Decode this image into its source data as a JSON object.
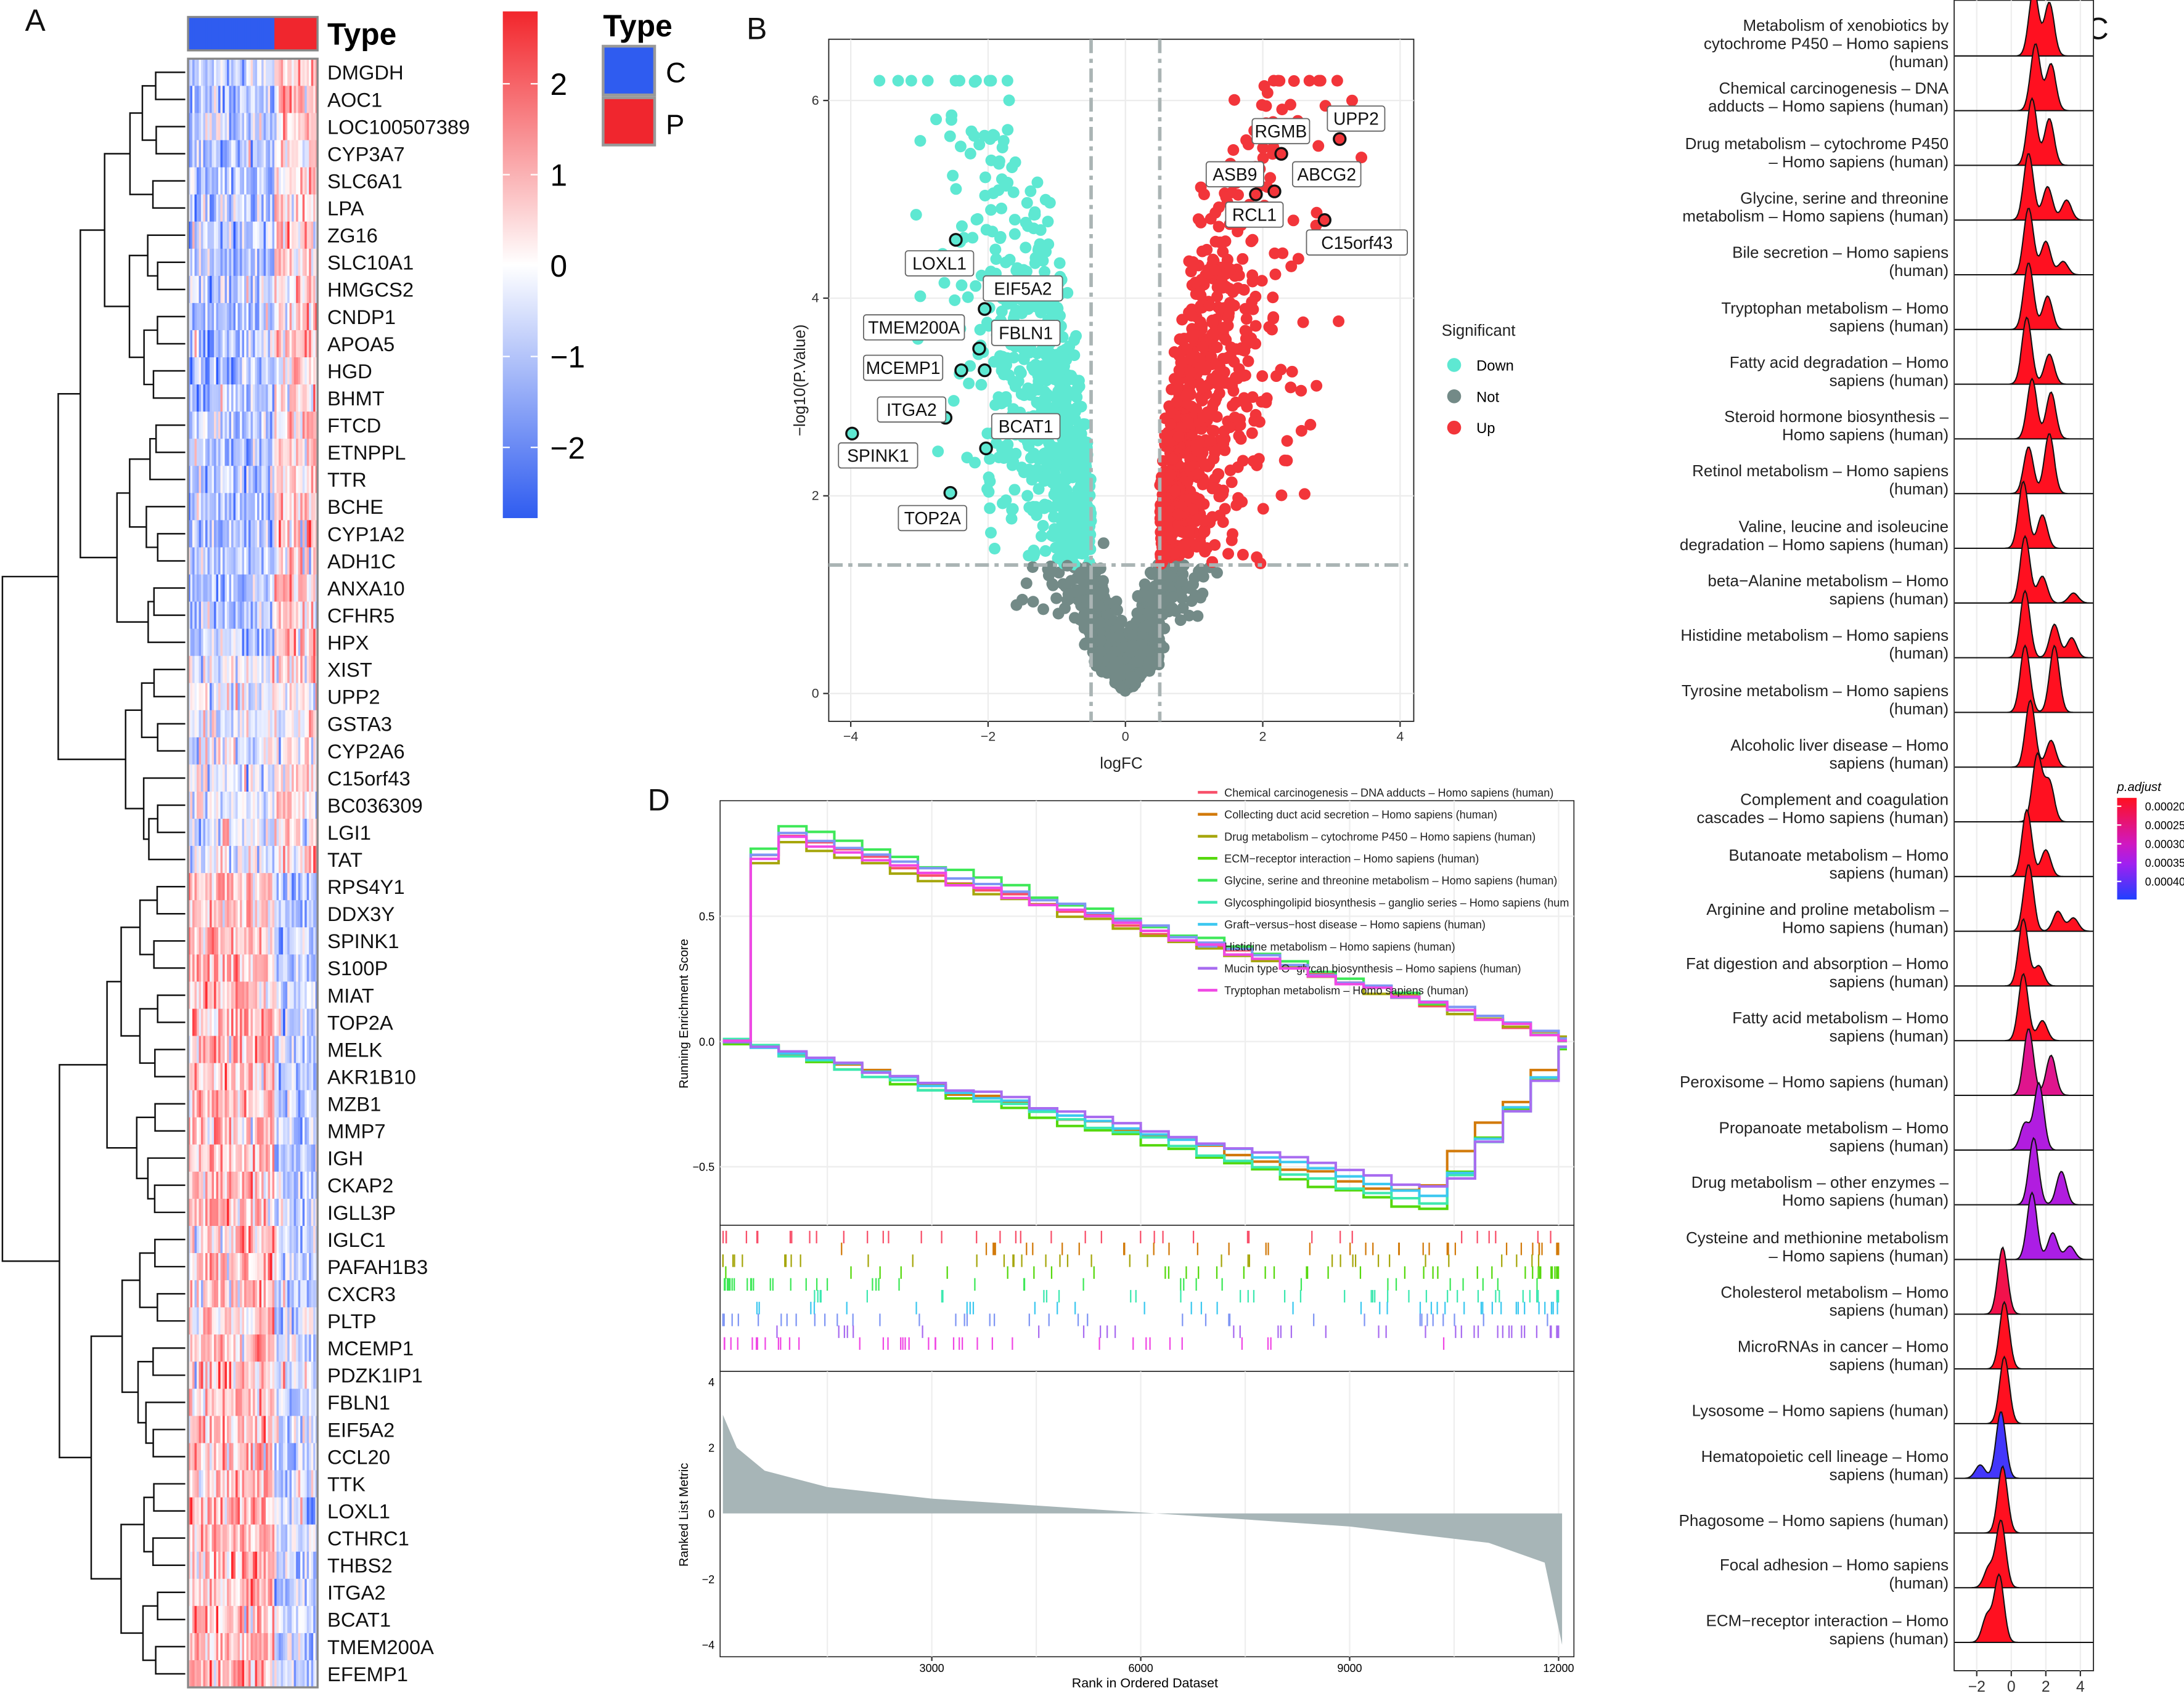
{
  "panels": {
    "a": "A",
    "b": "B",
    "c": "C",
    "d": "D"
  },
  "heatmap": {
    "type_title": "Type",
    "legend_title": "Type",
    "groups": [
      {
        "label": "C",
        "color": "#2f5cf0"
      },
      {
        "label": "P",
        "color": "#f0262e"
      }
    ],
    "scale_ticks": [
      "2",
      "1",
      "0",
      "−1",
      "−2"
    ],
    "n_control_cols": 40,
    "n_cols": 60,
    "genes": [
      "DMGDH",
      "AOC1",
      "LOC100507389",
      "CYP3A7",
      "SLC6A1",
      "LPA",
      "ZG16",
      "SLC10A1",
      "HMGCS2",
      "CNDP1",
      "APOA5",
      "HGD",
      "BHMT",
      "FTCD",
      "ETNPPL",
      "TTR",
      "BCHE",
      "CYP1A2",
      "ADH1C",
      "ANXA10",
      "CFHR5",
      "HPX",
      "XIST",
      "UPP2",
      "GSTA3",
      "CYP2A6",
      "C15orf43",
      "BC036309",
      "LGI1",
      "TAT",
      "RPS4Y1",
      "DDX3Y",
      "SPINK1",
      "S100P",
      "MIAT",
      "TOP2A",
      "MELK",
      "AKR1B10",
      "MZB1",
      "MMP7",
      "IGH",
      "CKAP2",
      "IGLL3P",
      "IGLC1",
      "PAFAH1B3",
      "CXCR3",
      "PLTP",
      "MCEMP1",
      "PDZK1IP1",
      "FBLN1",
      "EIF5A2",
      "CCL20",
      "TTK",
      "LOXL1",
      "CTHRC1",
      "THBS2",
      "ITGA2",
      "BCAT1",
      "TMEM200A",
      "EFEMP1"
    ],
    "row_trend_counts": [
      22,
      8,
      4,
      26
    ]
  },
  "chart_data": [
    {
      "type": "scatter",
      "name": "volcano",
      "xlabel": "logFC",
      "ylabel": "−log10(P.Value)",
      "xlim": [
        -4.2,
        4.2
      ],
      "ylim": [
        0,
        6.6
      ],
      "xticks": [
        "−4",
        "−2",
        "0",
        "2",
        "4"
      ],
      "yticks": [
        "0",
        "2",
        "4",
        "6"
      ],
      "thresholds": {
        "logFC": 0.5,
        "neglog10p": 1.3
      },
      "legend": {
        "title": "Significant",
        "position": "right",
        "items": [
          {
            "label": "Down",
            "color": "#5ee8d2"
          },
          {
            "label": "Not",
            "color": "#738a87"
          },
          {
            "label": "Up",
            "color": "#f2353a"
          }
        ]
      },
      "labeled_points": [
        {
          "gene": "LOXL1",
          "x": -2.47,
          "y": 4.59
        },
        {
          "gene": "EIF5A2",
          "x": -2.05,
          "y": 3.89
        },
        {
          "gene": "TMEM200A",
          "x": -2.13,
          "y": 3.49
        },
        {
          "gene": "FBLN1",
          "x": -2.05,
          "y": 3.27
        },
        {
          "gene": "MCEMP1",
          "x": -2.39,
          "y": 3.27
        },
        {
          "gene": "ITGA2",
          "x": -2.62,
          "y": 2.79
        },
        {
          "gene": "BCAT1",
          "x": -2.03,
          "y": 2.48
        },
        {
          "gene": "SPINK1",
          "x": -3.98,
          "y": 2.63
        },
        {
          "gene": "TOP2A",
          "x": -2.55,
          "y": 2.03
        },
        {
          "gene": "UPP2",
          "x": 3.12,
          "y": 5.61
        },
        {
          "gene": "RGMB",
          "x": 2.27,
          "y": 5.46
        },
        {
          "gene": "ASB9",
          "x": 1.9,
          "y": 5.05
        },
        {
          "gene": "ABCG2",
          "x": 2.17,
          "y": 5.08
        },
        {
          "gene": "RCL1",
          "x": 2.15,
          "y": 4.87
        },
        {
          "gene": "C15orf43",
          "x": 2.9,
          "y": 4.79
        }
      ]
    },
    {
      "type": "ridge",
      "name": "ridgeplot",
      "xticks": [
        "−2",
        "0",
        "2",
        "4"
      ],
      "legend_title": "p.adjust",
      "legend_ticks": [
        "0.00020",
        "0.00025",
        "0.00030",
        "0.00035",
        "0.00040"
      ],
      "pathways": [
        {
          "label": "Metabolism of xenobiotics by cytochrome P450 – Homo sapiens (human)",
          "padj": 0.0002,
          "peaks": [
            [
              1.3,
              1
            ],
            [
              2.2,
              0.8
            ]
          ]
        },
        {
          "label": "Chemical carcinogenesis – DNA adducts – Homo sapiens (human)",
          "padj": 0.0002,
          "peaks": [
            [
              1.4,
              1
            ],
            [
              2.3,
              0.7
            ]
          ]
        },
        {
          "label": "Drug metabolism – cytochrome P450 – Homo sapiens (human)",
          "padj": 0.0002,
          "peaks": [
            [
              1.2,
              1
            ],
            [
              2.2,
              0.7
            ]
          ]
        },
        {
          "label": "Glycine, serine and threonine metabolism – Homo sapiens (human)",
          "padj": 0.0002,
          "peaks": [
            [
              1,
              1
            ],
            [
              2.1,
              0.5
            ],
            [
              3.2,
              0.3
            ]
          ]
        },
        {
          "label": "Bile secretion – Homo sapiens (human)",
          "padj": 0.0002,
          "peaks": [
            [
              1,
              1
            ],
            [
              2,
              0.5
            ],
            [
              3,
              0.2
            ]
          ]
        },
        {
          "label": "Tryptophan metabolism – Homo sapiens (human)",
          "padj": 0.0002,
          "peaks": [
            [
              1,
              1
            ],
            [
              2.1,
              0.5
            ]
          ]
        },
        {
          "label": "Fatty acid degradation – Homo sapiens (human)",
          "padj": 0.0002,
          "peaks": [
            [
              0.9,
              1
            ],
            [
              2.2,
              0.45
            ]
          ]
        },
        {
          "label": "Steroid hormone biosynthesis – Homo sapiens (human)",
          "padj": 0.0002,
          "peaks": [
            [
              1.2,
              0.9
            ],
            [
              2.3,
              0.7
            ]
          ]
        },
        {
          "label": "Retinol metabolism – Homo sapiens (human)",
          "padj": 0.0002,
          "peaks": [
            [
              1,
              0.7
            ],
            [
              2.2,
              0.9
            ]
          ]
        },
        {
          "label": "Valine, leucine and isoleucine degradation – Homo sapiens (human)",
          "padj": 0.0002,
          "peaks": [
            [
              0.7,
              1
            ],
            [
              1.8,
              0.5
            ]
          ]
        },
        {
          "label": "beta−Alanine metabolism – Homo sapiens (human)",
          "padj": 0.0002,
          "peaks": [
            [
              0.8,
              1
            ],
            [
              1.8,
              0.4
            ],
            [
              3.6,
              0.15
            ]
          ]
        },
        {
          "label": "Histidine metabolism – Homo sapiens (human)",
          "padj": 0.0002,
          "peaks": [
            [
              0.8,
              1
            ],
            [
              2.5,
              0.5
            ],
            [
              3.5,
              0.3
            ]
          ]
        },
        {
          "label": "Tyrosine metabolism – Homo sapiens (human)",
          "padj": 0.0002,
          "peaks": [
            [
              0.8,
              1
            ],
            [
              2.5,
              1
            ]
          ]
        },
        {
          "label": "Alcoholic liver disease – Homo sapiens (human)",
          "padj": 0.0002,
          "peaks": [
            [
              1.1,
              1
            ],
            [
              2.3,
              0.4
            ]
          ]
        },
        {
          "label": "Complement and coagulation cascades – Homo sapiens (human)",
          "padj": 0.0002,
          "peaks": [
            [
              1.5,
              1
            ],
            [
              2.2,
              0.6
            ]
          ]
        },
        {
          "label": "Butanoate metabolism – Homo sapiens (human)",
          "padj": 0.0002,
          "peaks": [
            [
              0.9,
              1
            ],
            [
              2,
              0.4
            ]
          ]
        },
        {
          "label": "Arginine and proline metabolism – Homo sapiens (human)",
          "padj": 0.0002,
          "peaks": [
            [
              1,
              1
            ],
            [
              2.7,
              0.3
            ],
            [
              3.6,
              0.2
            ]
          ]
        },
        {
          "label": "Fat digestion and absorption – Homo sapiens (human)",
          "padj": 0.0002,
          "peaks": [
            [
              0.7,
              1
            ],
            [
              1.6,
              0.3
            ]
          ]
        },
        {
          "label": "Fatty acid metabolism – Homo sapiens (human)",
          "padj": 0.0002,
          "peaks": [
            [
              0.7,
              1
            ],
            [
              1.8,
              0.3
            ]
          ]
        },
        {
          "label": "Peroxisome – Homo sapiens (human)",
          "padj": 0.00025,
          "peaks": [
            [
              1,
              1
            ],
            [
              2.3,
              0.6
            ]
          ]
        },
        {
          "label": "Propanoate metabolism – Homo sapiens (human)",
          "padj": 0.00032,
          "peaks": [
            [
              1.6,
              1
            ],
            [
              0.8,
              0.4
            ]
          ]
        },
        {
          "label": "Drug metabolism – other enzymes – Homo sapiens (human)",
          "padj": 0.00032,
          "peaks": [
            [
              1.3,
              1
            ],
            [
              2.9,
              0.5
            ]
          ]
        },
        {
          "label": "Cysteine and methionine metabolism – Homo sapiens (human)",
          "padj": 0.00033,
          "peaks": [
            [
              1.2,
              1
            ],
            [
              2.4,
              0.4
            ],
            [
              3.4,
              0.2
            ]
          ]
        },
        {
          "label": "Cholesterol metabolism – Homo sapiens (human)",
          "padj": 0.00022,
          "peaks": [
            [
              -0.5,
              1
            ]
          ]
        },
        {
          "label": "MicroRNAs in cancer – Homo sapiens (human)",
          "padj": 0.0002,
          "peaks": [
            [
              -0.4,
              1
            ]
          ]
        },
        {
          "label": "Lysosome – Homo sapiens (human)",
          "padj": 0.0002,
          "peaks": [
            [
              -0.4,
              1
            ]
          ]
        },
        {
          "label": "Hematopoietic cell lineage – Homo sapiens (human)",
          "padj": 0.0004,
          "peaks": [
            [
              -0.6,
              1
            ],
            [
              -1.8,
              0.2
            ]
          ]
        },
        {
          "label": "Phagosome – Homo sapiens (human)",
          "padj": 0.0002,
          "peaks": [
            [
              -0.5,
              1
            ]
          ]
        },
        {
          "label": "Focal adhesion – Homo sapiens (human)",
          "padj": 0.0002,
          "peaks": [
            [
              -0.6,
              1
            ],
            [
              -1.3,
              0.3
            ]
          ]
        },
        {
          "label": "ECM−receptor interaction – Homo sapiens (human)",
          "padj": 0.0002,
          "peaks": [
            [
              -0.7,
              1
            ],
            [
              -1.4,
              0.4
            ]
          ]
        }
      ]
    },
    {
      "type": "line",
      "name": "gsea",
      "xlabel": "Rank in Ordered Dataset",
      "ylabel_top": "Running Enrichment Score",
      "ylabel_bottom": "Ranked List Metric",
      "xticks": [
        "3000",
        "6000",
        "9000",
        "12000"
      ],
      "yticks_top": [
        "0.5",
        "0.0",
        "−0.5"
      ],
      "yticks_bottom": [
        "4",
        "2",
        "0",
        "−2",
        "−4"
      ],
      "series": [
        {
          "name": "Chemical carcinogenesis – DNA adducts – Homo sapiens (human)",
          "color": "#f8506a",
          "dir": 1,
          "peak": 0.83
        },
        {
          "name": "Collecting duct acid secretion – Homo sapiens (human)",
          "color": "#d27a0a",
          "dir": -1,
          "peak": -0.62
        },
        {
          "name": "Drug metabolism – cytochrome P450 – Homo sapiens (human)",
          "color": "#a6a60c",
          "dir": 1,
          "peak": 0.8
        },
        {
          "name": "ECM−receptor interaction – Homo sapiens (human)",
          "color": "#55d80c",
          "dir": -1,
          "peak": -0.68
        },
        {
          "name": "Glycine, serine and threonine metabolism – Homo sapiens (human)",
          "color": "#3ee858",
          "dir": 1,
          "peak": 0.87
        },
        {
          "name": "Glycosphingolipid biosynthesis – ganglio series – Homo sapiens (hum",
          "color": "#3de8b0",
          "dir": -1,
          "peak": -0.66
        },
        {
          "name": "Graft−versus−host disease – Homo sapiens (human)",
          "color": "#3cc8f0",
          "dir": -1,
          "peak": -0.62
        },
        {
          "name": "Histidine metabolism – Homo sapiens (human)",
          "color": "#7f96f4",
          "dir": 1,
          "peak": 0.85
        },
        {
          "name": "Mucin type O−glycan biosynthesis – Homo sapiens (human)",
          "color": "#a86cf0",
          "dir": -1,
          "peak": -0.6
        },
        {
          "name": "Tryptophan metabolism – Homo sapiens (human)",
          "color": "#f048e4",
          "dir": 1,
          "peak": 0.82
        }
      ],
      "ranked_metric": [
        [
          0,
          3
        ],
        [
          200,
          2
        ],
        [
          600,
          1.3
        ],
        [
          1500,
          0.8
        ],
        [
          3000,
          0.45
        ],
        [
          6000,
          0.03
        ],
        [
          9000,
          -0.4
        ],
        [
          11000,
          -0.9
        ],
        [
          11800,
          -1.5
        ],
        [
          12050,
          -4
        ]
      ]
    }
  ]
}
